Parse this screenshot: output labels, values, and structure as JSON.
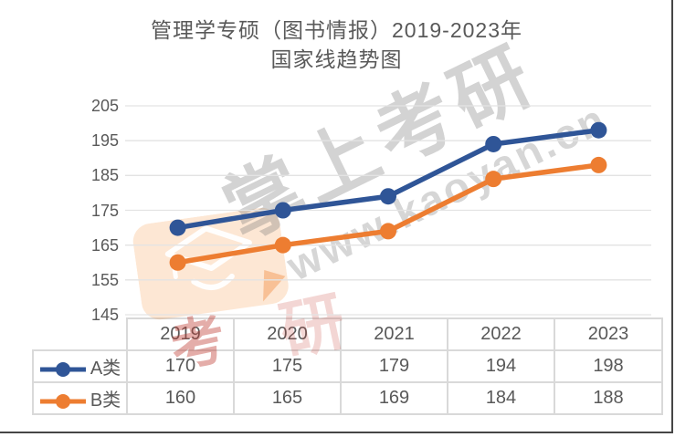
{
  "title": {
    "line1": "管理学专硕（图书情报）2019-2023年",
    "line2": "国家线趋势图"
  },
  "watermark": {
    "brand_text": "掌上考研",
    "url_text": "www.kaoyan.cn",
    "stamp_char_1": "考",
    "stamp_char_2": "研",
    "logo_icon": "graduation-cap-icon",
    "logo_color": "#F39237"
  },
  "chart_data": {
    "type": "line",
    "title": "管理学专硕（图书情报）2019-2023年 国家线趋势图",
    "categories": [
      "2019",
      "2020",
      "2021",
      "2022",
      "2023"
    ],
    "series": [
      {
        "name": "A类",
        "values": [
          170,
          175,
          179,
          194,
          198
        ],
        "color": "#2F5597"
      },
      {
        "name": "B类",
        "values": [
          160,
          165,
          169,
          184,
          188
        ],
        "color": "#ED7D31"
      }
    ],
    "ylim": [
      145,
      205
    ],
    "yticks": [
      205,
      195,
      185,
      175,
      165,
      155,
      145
    ],
    "grid": "horizontal-only",
    "gridline_color": "#E3E3E3",
    "axis_label_color": "#595959",
    "legend_position": "table-left-column",
    "table_shown": true
  }
}
